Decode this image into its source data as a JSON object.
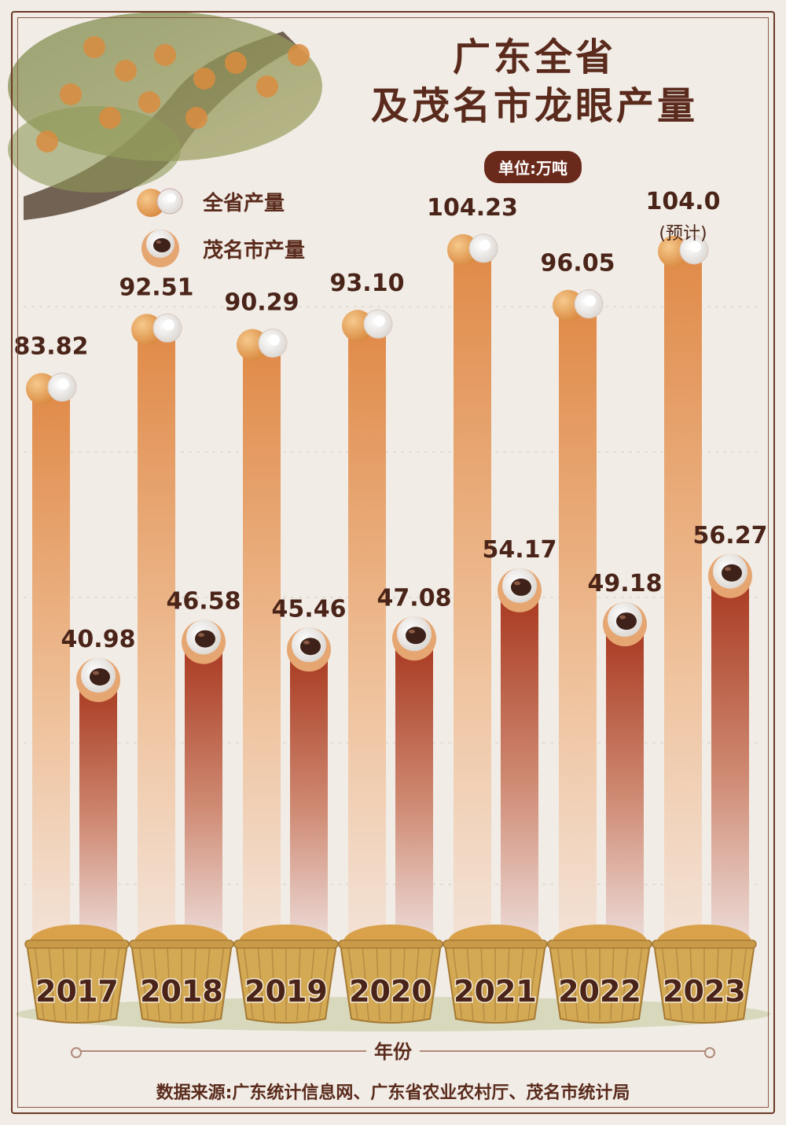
{
  "title_line1": "广东全省",
  "title_line2": "及茂名市龙眼产量",
  "unit": "单位:万吨",
  "legend": {
    "province": "全省产量",
    "maoming": "茂名市产量"
  },
  "x_axis_title": "年份",
  "source": "数据来源:广东统计信息网、广东省农业农村厅、茂名市统计局",
  "colors": {
    "province_bar": "#e3955a",
    "maoming_bar": "#b4482a",
    "title": "#5a2b1c",
    "label": "#4a2418",
    "basket": "#d4a954"
  },
  "chart_data": {
    "type": "bar",
    "categories": [
      "2017",
      "2018",
      "2019",
      "2020",
      "2021",
      "2022",
      "2023"
    ],
    "series": [
      {
        "name": "全省产量",
        "values": [
          83.82,
          92.51,
          90.29,
          93.1,
          104.23,
          96.05,
          104.0
        ],
        "labels": [
          "83.82",
          "92.51",
          "90.29",
          "93.10",
          "104.23",
          "96.05",
          "104.0"
        ]
      },
      {
        "name": "茂名市产量",
        "values": [
          40.98,
          46.58,
          45.46,
          47.08,
          54.17,
          49.18,
          56.27
        ],
        "labels": [
          "40.98",
          "46.58",
          "45.46",
          "47.08",
          "54.17",
          "49.18",
          "56.27"
        ]
      }
    ],
    "annotation": {
      "category": "2023",
      "series": "全省产量",
      "text": "(预计)"
    },
    "ylabel": "单位:万吨",
    "xlabel": "年份",
    "grid": true,
    "legend_position": "top-left"
  }
}
